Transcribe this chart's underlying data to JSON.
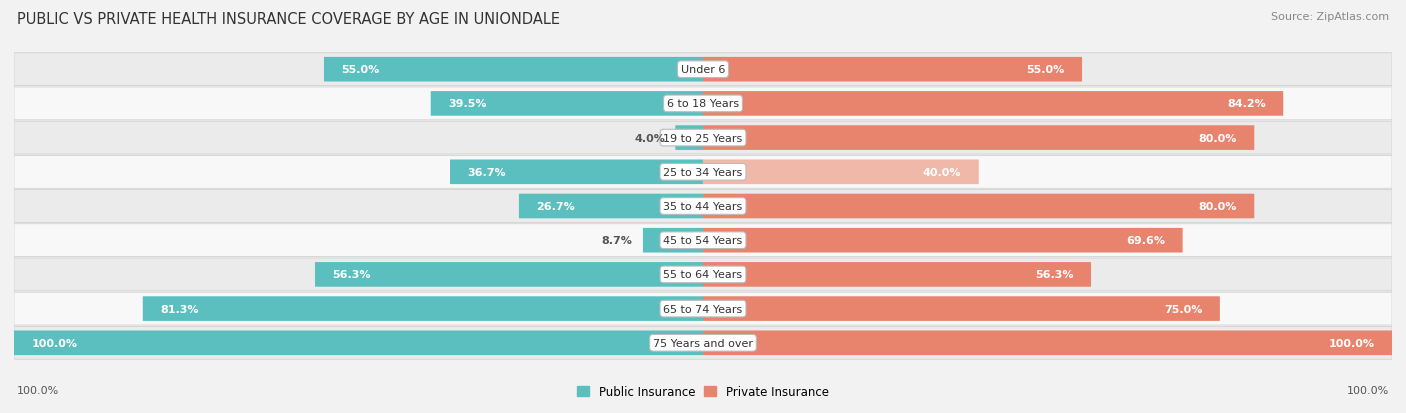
{
  "title": "PUBLIC VS PRIVATE HEALTH INSURANCE COVERAGE BY AGE IN UNIONDALE",
  "source": "Source: ZipAtlas.com",
  "categories": [
    "Under 6",
    "6 to 18 Years",
    "19 to 25 Years",
    "25 to 34 Years",
    "35 to 44 Years",
    "45 to 54 Years",
    "55 to 64 Years",
    "65 to 74 Years",
    "75 Years and over"
  ],
  "public_values": [
    55.0,
    39.5,
    4.0,
    36.7,
    26.7,
    8.7,
    56.3,
    81.3,
    100.0
  ],
  "private_values": [
    55.0,
    84.2,
    80.0,
    40.0,
    80.0,
    69.6,
    56.3,
    75.0,
    100.0
  ],
  "public_color": "#5bbfbf",
  "private_color": "#e8836d",
  "private_color_light": "#f0b8a8",
  "public_color_light": "#a0d8d8",
  "label_color_outside": "#555555",
  "label_color_inside": "#ffffff",
  "background_color": "#f2f2f2",
  "row_bg_even": "#ebebeb",
  "row_bg_odd": "#f8f8f8",
  "max_value": 100.0,
  "legend_public": "Public Insurance",
  "legend_private": "Private Insurance",
  "title_fontsize": 10.5,
  "source_fontsize": 8,
  "label_fontsize": 8,
  "category_fontsize": 8,
  "bottom_label": "100.0%",
  "private_light_threshold": 50.0,
  "public_light_threshold": 50.0
}
